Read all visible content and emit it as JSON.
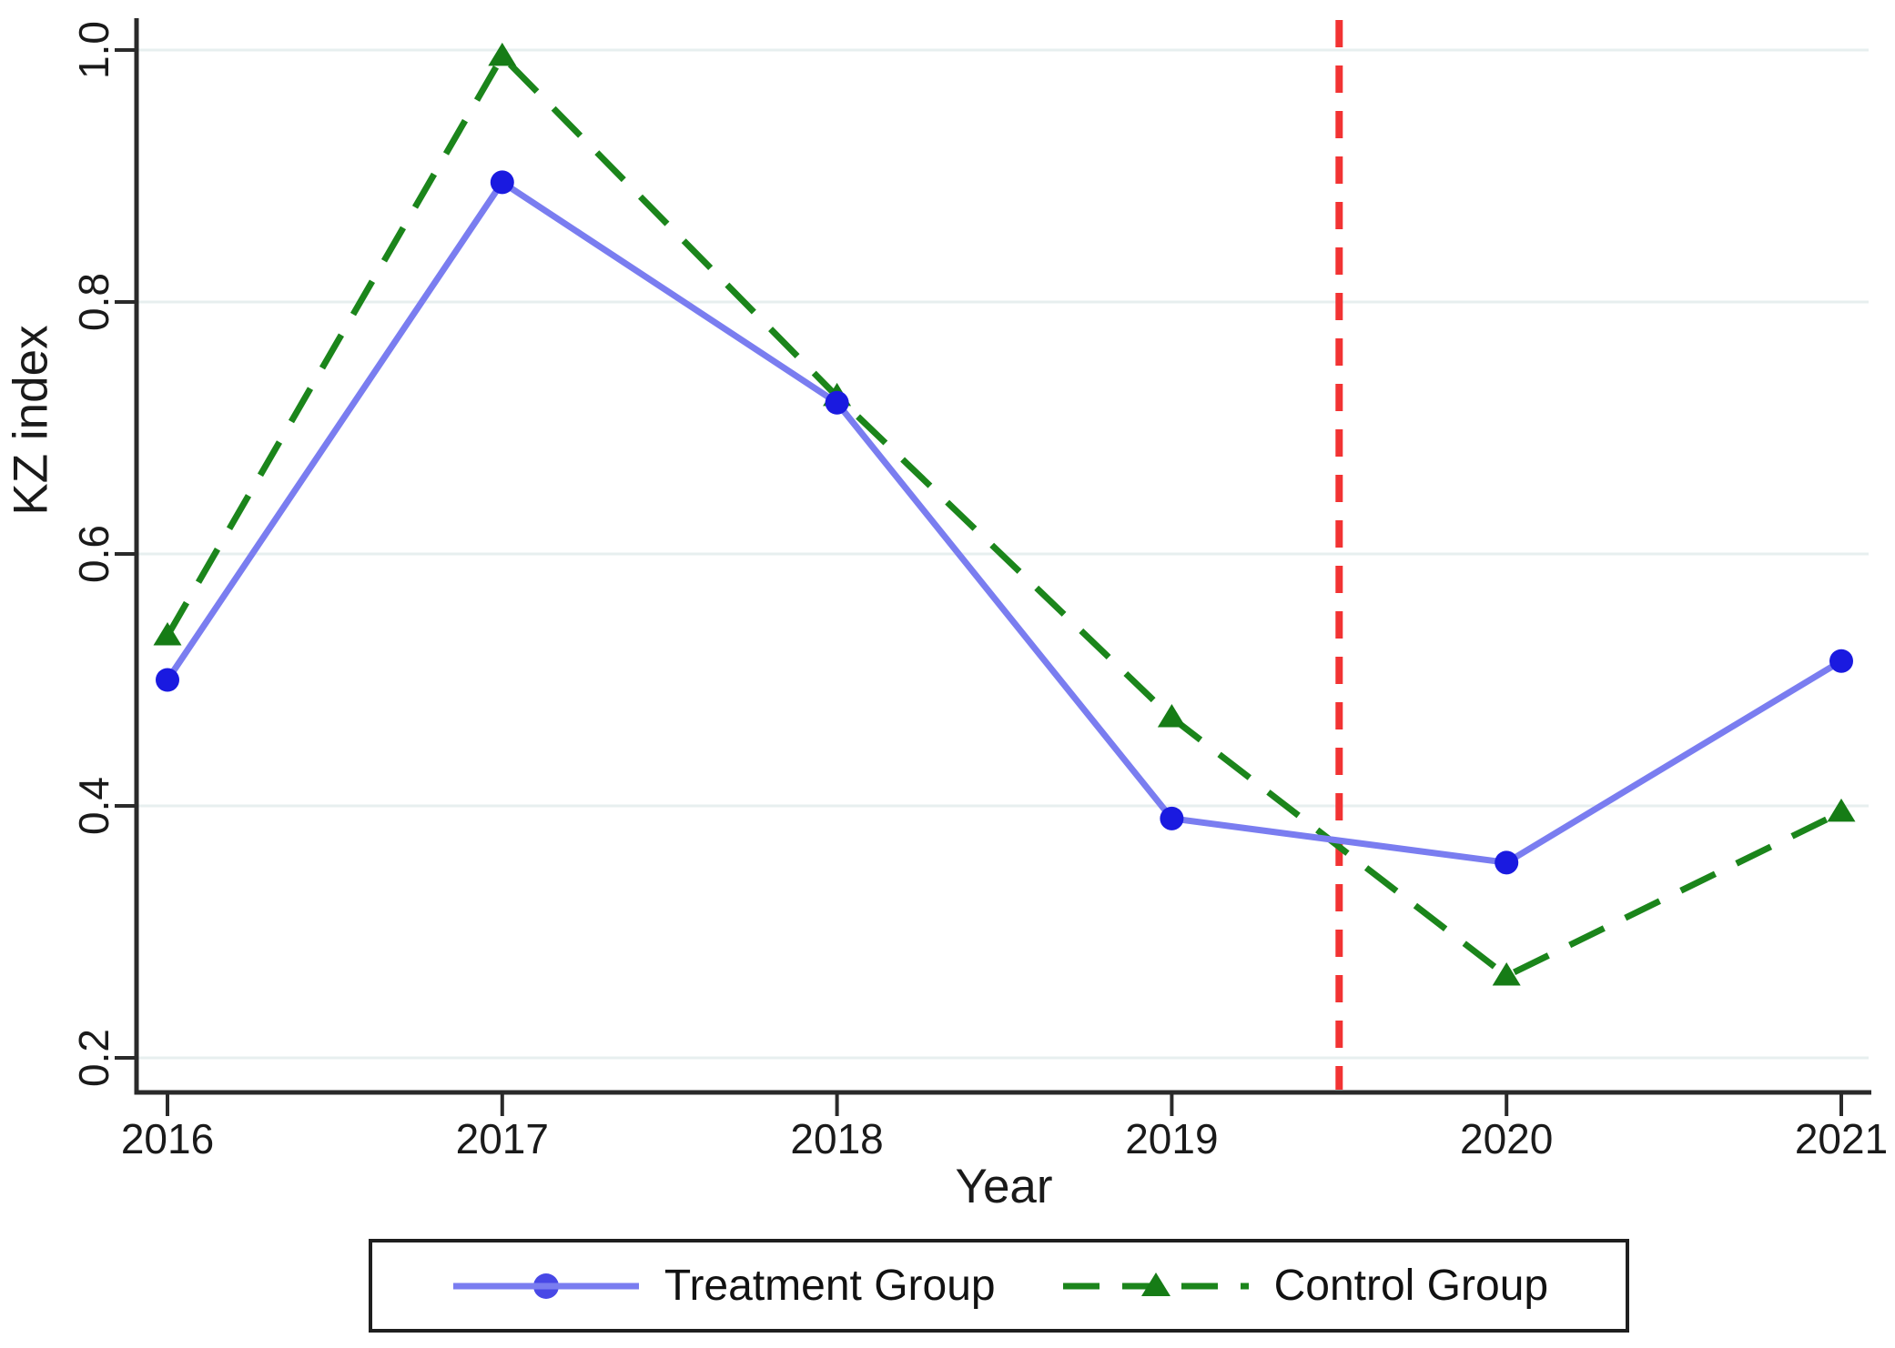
{
  "figure": {
    "type": "stata-style line chart",
    "background": "#ffffff"
  },
  "chart_data": {
    "type": "line",
    "title": "",
    "xlabel": "Year",
    "ylabel": "KZ index",
    "x": [
      2016,
      2017,
      2018,
      2019,
      2020,
      2021
    ],
    "x_tick_labels": [
      "2016",
      "2017",
      "2018",
      "2019",
      "2020",
      "2021"
    ],
    "y_tick_values": [
      0.2,
      0.4,
      0.6,
      0.8,
      1.0
    ],
    "y_tick_labels": [
      "0.2",
      "0.4",
      "0.6",
      "0.8",
      "1.0"
    ],
    "ylim": [
      0.17,
      1.03
    ],
    "xlim": [
      2015.9,
      2021.15
    ],
    "grid": true,
    "legend_position": "bottom",
    "series": [
      {
        "name": "Treatment Group",
        "values": [
          0.5,
          0.895,
          0.72,
          0.39,
          0.355,
          0.515
        ],
        "line_style": "solid",
        "marker": "circle",
        "line_color": "#7a7df0",
        "marker_color": "#1a1ae0"
      },
      {
        "name": "Control Group",
        "values": [
          0.535,
          0.995,
          0.725,
          0.47,
          0.265,
          0.395
        ],
        "line_style": "dashed",
        "marker": "triangle",
        "line_color": "#1b851b",
        "marker_color": "#167c16"
      }
    ],
    "reference_line": {
      "orientation": "vertical",
      "x": 2019.5,
      "style": "dashed",
      "color": "#f23333"
    },
    "colors": {
      "axis": "#2a2a2a",
      "gridline": "#e7efef",
      "text": "#1a1a1a"
    }
  },
  "legend": {
    "items": [
      {
        "label": "Treatment Group"
      },
      {
        "label": "Control Group"
      }
    ]
  }
}
